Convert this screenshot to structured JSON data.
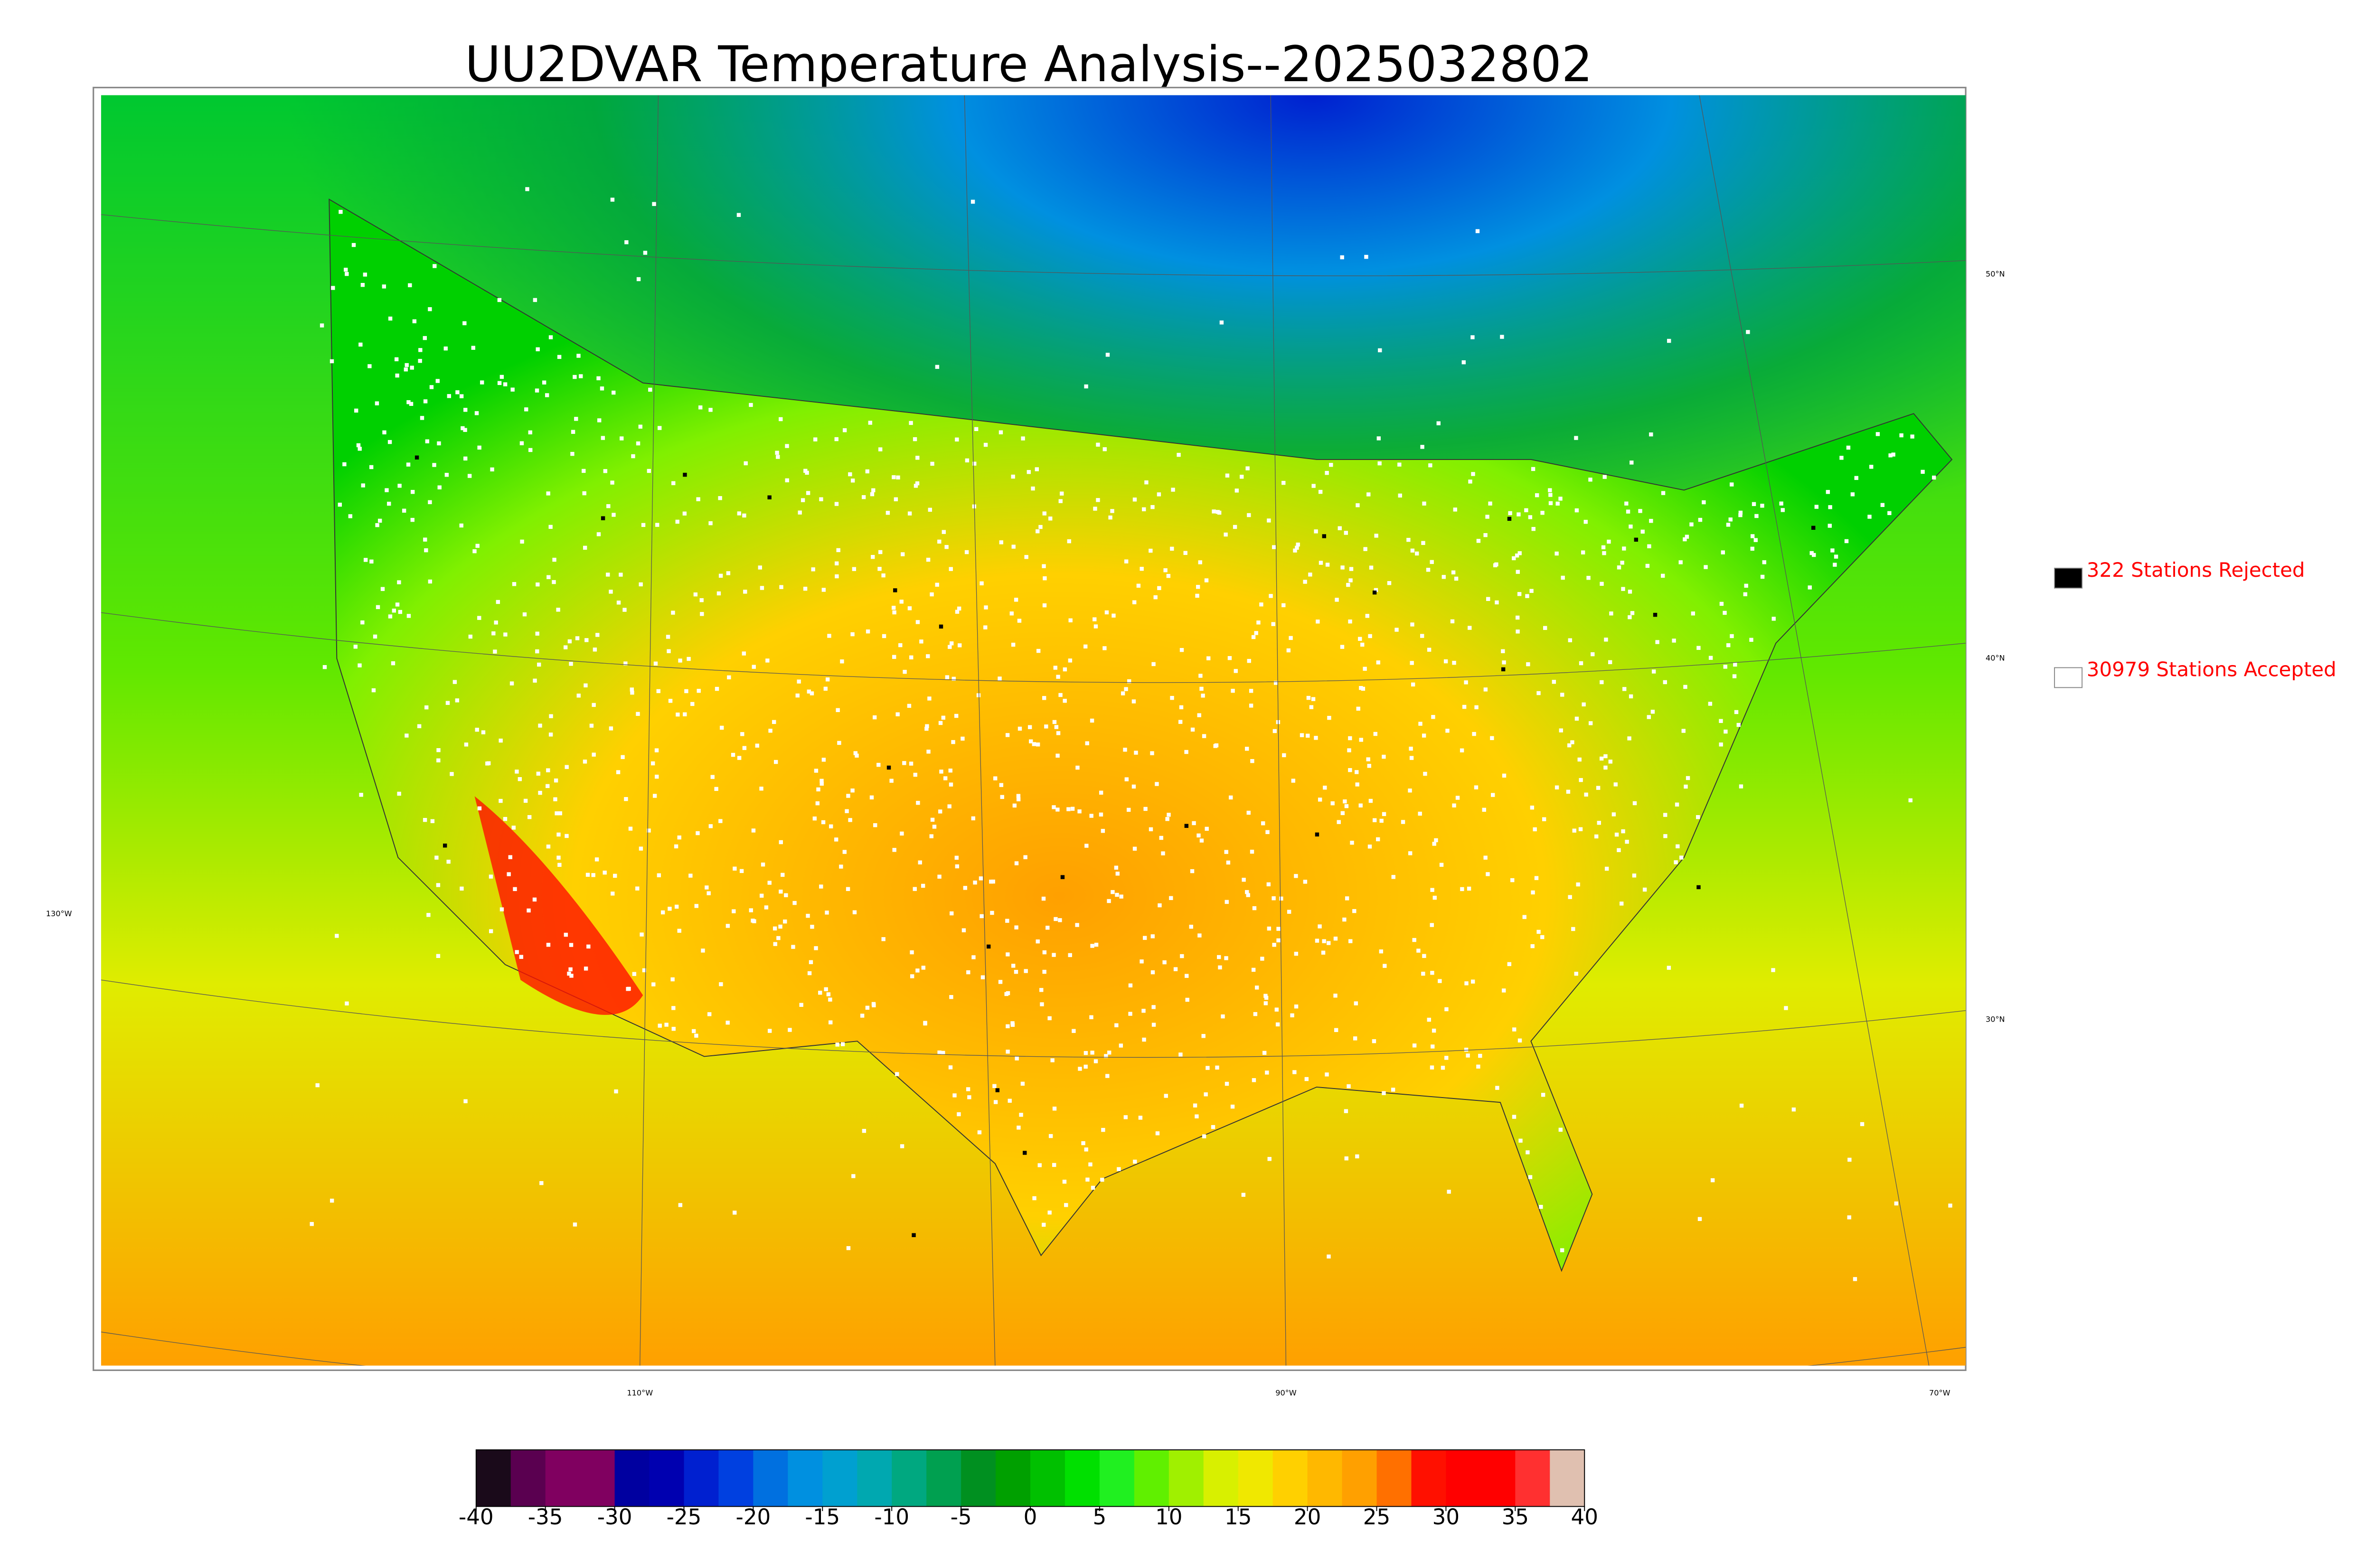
{
  "title": "UU2DVAR Temperature Analysis--2025032802",
  "legend": [
    {
      "label": "322 Stations Rejected",
      "color": "#000000"
    },
    {
      "label": "30979 Stations Accepted",
      "color": "#ffffff"
    }
  ],
  "graticule": {
    "lat_labels": [
      "50°N",
      "40°N",
      "30°N"
    ],
    "lon_labels": [
      "130°W",
      "110°W",
      "90°W",
      "70°W"
    ]
  },
  "colorbar": {
    "lim": [
      -40,
      40
    ],
    "ticks": [
      -40,
      -35,
      -30,
      -25,
      -20,
      -15,
      -10,
      -5,
      0,
      5,
      10,
      15,
      20,
      25,
      30,
      35,
      40
    ],
    "colors": [
      "#1a0a1a",
      "#5a0050",
      "#800060",
      "#800060",
      "#0000a0",
      "#0000b0",
      "#0020d0",
      "#0040e0",
      "#0070e0",
      "#0090e0",
      "#00a0d0",
      "#00a8b0",
      "#00a880",
      "#00a050",
      "#009020",
      "#00a000",
      "#00c000",
      "#00e000",
      "#20f020",
      "#60f000",
      "#a0f000",
      "#d8f000",
      "#f0e800",
      "#ffd000",
      "#ffb800",
      "#ffa000",
      "#ff7000",
      "#ff1000",
      "#ff0000",
      "#ff0000",
      "#ff3030",
      "#e0c0b0"
    ]
  }
}
